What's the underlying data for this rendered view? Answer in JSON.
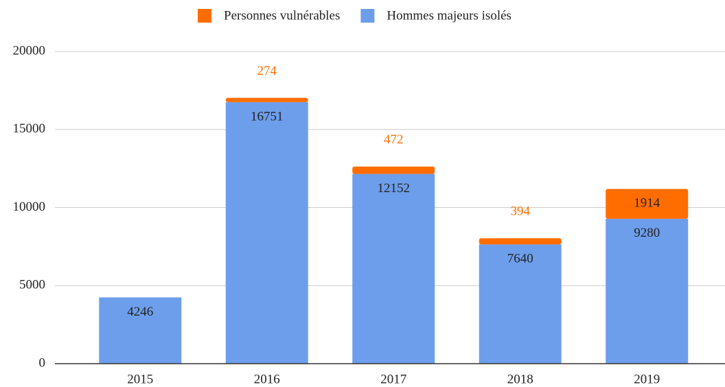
{
  "chart_data": {
    "type": "stacked_bar",
    "categories": [
      "2015",
      "2016",
      "2017",
      "2018",
      "2019"
    ],
    "series": [
      {
        "name": "Personnes vulnérables",
        "color": "#ff6d01",
        "values": [
          null,
          274,
          472,
          394,
          1914
        ]
      },
      {
        "name": "Hommes majeurs isolés",
        "color": "#6d9eeb",
        "values": [
          4246,
          16751,
          12152,
          7640,
          9280
        ]
      }
    ],
    "ylim": [
      0,
      20000
    ],
    "yticks": [
      0,
      5000,
      10000,
      15000,
      20000
    ],
    "grid": true,
    "legend": "top"
  }
}
